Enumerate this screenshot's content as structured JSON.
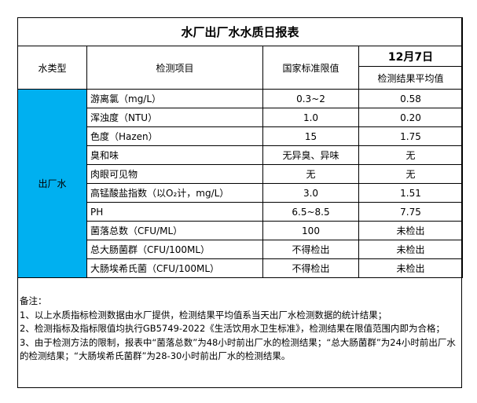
{
  "title": "水厂出厂水水质日报表",
  "headers": {
    "type": "水类型",
    "item": "检测项目",
    "limit": "国家标准限值",
    "date": "12月7日",
    "result": "检测结果平均值"
  },
  "water_type": "出厂水",
  "rows": [
    {
      "item": "游离氯（mg/L）",
      "limit": "0.3~2",
      "result": "0.58"
    },
    {
      "item": "浑浊度（NTU）",
      "limit": "1.0",
      "result": "0.20"
    },
    {
      "item": "色度（Hazen）",
      "limit": "15",
      "result": "1.75"
    },
    {
      "item": "臭和味",
      "limit": "无异臭、异味",
      "result": "无"
    },
    {
      "item": "肉眼可见物",
      "limit": "无",
      "result": "无"
    },
    {
      "item": "高锰酸盐指数（以O₂计，mg/L）",
      "limit": "3.0",
      "result": "1.51"
    },
    {
      "item": "PH",
      "limit": "6.5~8.5",
      "result": "7.75"
    },
    {
      "item": "菌落总数（CFU/ML）",
      "limit": "100",
      "result": "未检出"
    },
    {
      "item": "总大肠菌群（CFU/100ML）",
      "limit": "不得检出",
      "result": "未检出"
    },
    {
      "item": "大肠埃希氏菌（CFU/100ML）",
      "limit": "不得检出",
      "result": "未检出"
    }
  ],
  "notes": {
    "heading": "备注：",
    "lines": [
      "1、以上水质指标检测数据由水厂提供，检测结果平均值系当天出厂水检测数据的统计结果；",
      "2、检测指标及指标限值均执行GB5749-2022《生活饮用水卫生标准》，检测结果在限值范围内即为合格；",
      "3、由于检测方法的限制，报表中“菌落总数”为48小时前出厂水的检测结果；“总大肠菌群”为24小时前出厂水的检测结果；“大肠埃希氏菌群”为28-30小时前出厂水的检测结果。"
    ]
  },
  "colors": {
    "type_cell": "#00b0f0"
  }
}
